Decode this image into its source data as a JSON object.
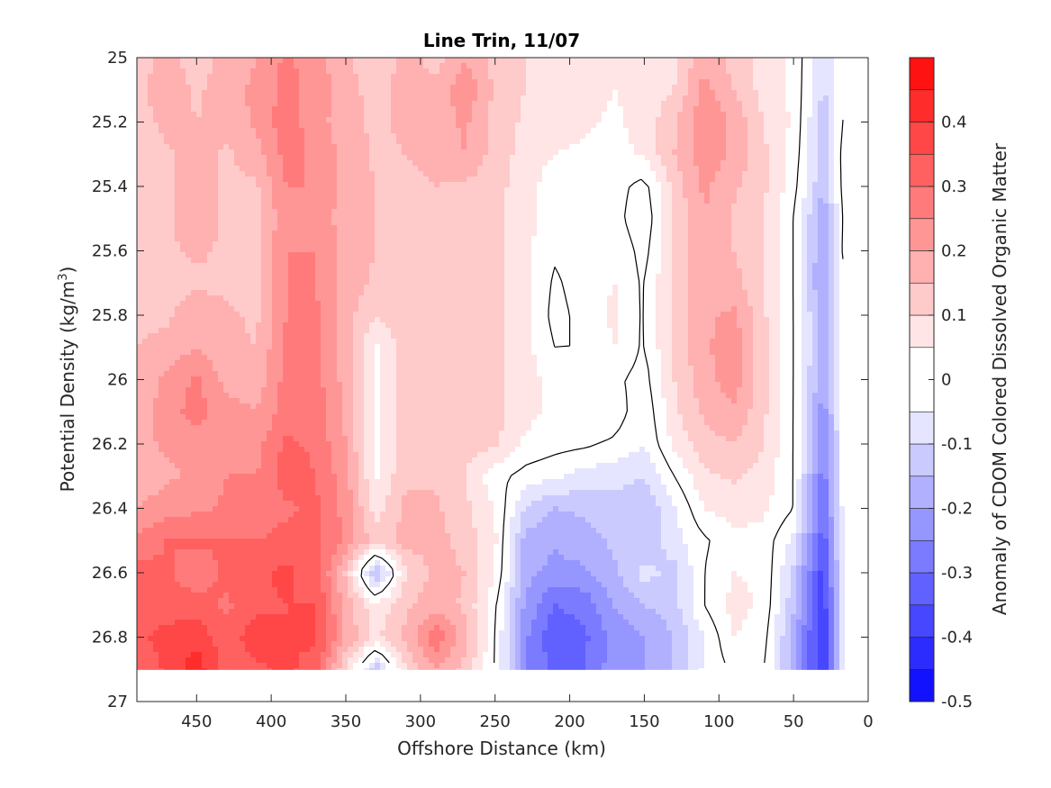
{
  "chart_data": {
    "type": "contour",
    "title": "Line Trin, 11/07",
    "xlabel": "Offshore Distance (km)",
    "ylabel": "Potential Density (kg/m",
    "ylabel_superscript": "3",
    "ylabel_suffix": ")",
    "xlim": [
      490,
      0
    ],
    "x_reversed": true,
    "ylim": [
      25,
      27
    ],
    "y_reversed": true,
    "x_ticks": [
      450,
      400,
      350,
      300,
      250,
      200,
      150,
      100,
      50,
      0
    ],
    "x_tick_labels": [
      "450",
      "400",
      "350",
      "300",
      "250",
      "200",
      "150",
      "100",
      "50",
      "0"
    ],
    "y_ticks": [
      25,
      25.2,
      25.4,
      25.6,
      25.8,
      26,
      26.2,
      26.4,
      26.6,
      26.8,
      27
    ],
    "y_tick_labels": [
      "25",
      "25.2",
      "25.4",
      "25.6",
      "25.8",
      "26",
      "26.2",
      "26.4",
      "26.6",
      "26.8",
      "27"
    ],
    "data_bottom_density": 26.9,
    "data_east_limit_km": 15,
    "colorbar": {
      "label": "Anomaly of CDOM Colored Dissolved Organic Matter",
      "range": [
        -0.5,
        0.5
      ],
      "ticks": [
        0.4,
        0.3,
        0.2,
        0.1,
        0,
        -0.1,
        -0.2,
        -0.3,
        -0.4,
        -0.5
      ],
      "tick_labels": [
        "0.4",
        "0.3",
        "0.2",
        "0.1",
        "0",
        "-0.1",
        "-0.2",
        "-0.3",
        "-0.4",
        "-0.5"
      ],
      "levels": [
        -0.5,
        -0.45,
        -0.4,
        -0.35,
        -0.3,
        -0.25,
        -0.2,
        -0.15,
        -0.1,
        -0.05,
        0.05,
        0.1,
        0.15,
        0.2,
        0.25,
        0.3,
        0.35,
        0.4,
        0.45,
        0.5
      ],
      "colormap": "blue-white-red"
    },
    "grid": false,
    "zero_contour_color": "#000000",
    "anomaly_grid": {
      "x_km": [
        490,
        470,
        450,
        430,
        410,
        390,
        370,
        350,
        330,
        310,
        290,
        270,
        250,
        230,
        210,
        190,
        170,
        150,
        130,
        110,
        90,
        70,
        50,
        30,
        15
      ],
      "density": [
        25.0,
        25.1,
        25.2,
        25.3,
        25.4,
        25.5,
        25.6,
        25.7,
        25.8,
        25.9,
        26.0,
        26.1,
        26.2,
        26.3,
        26.4,
        26.5,
        26.6,
        26.7,
        26.8,
        26.9
      ],
      "values": [
        [
          0.12,
          0.17,
          0.12,
          0.17,
          0.2,
          0.26,
          0.22,
          0.16,
          0.11,
          0.17,
          0.13,
          0.2,
          0.13,
          0.1,
          0.09,
          0.07,
          0.05,
          0.08,
          0.09,
          0.18,
          0.13,
          0.08,
          0.04,
          -0.1,
          0.0
        ],
        [
          0.13,
          0.19,
          0.14,
          0.18,
          0.21,
          0.27,
          0.23,
          0.17,
          0.13,
          0.17,
          0.16,
          0.24,
          0.14,
          0.1,
          0.08,
          0.07,
          0.05,
          0.07,
          0.1,
          0.22,
          0.15,
          0.08,
          0.04,
          -0.11,
          0.0
        ],
        [
          0.12,
          0.17,
          0.15,
          0.17,
          0.21,
          0.28,
          0.22,
          0.17,
          0.14,
          0.16,
          0.17,
          0.21,
          0.13,
          0.09,
          0.07,
          0.06,
          0.04,
          0.07,
          0.14,
          0.24,
          0.19,
          0.1,
          0.04,
          -0.13,
          0.02
        ],
        [
          0.11,
          0.14,
          0.17,
          0.14,
          0.18,
          0.27,
          0.24,
          0.18,
          0.14,
          0.15,
          0.17,
          0.2,
          0.13,
          0.08,
          0.05,
          0.04,
          0.03,
          0.06,
          0.15,
          0.23,
          0.19,
          0.11,
          0.03,
          -0.13,
          0.04
        ],
        [
          0.11,
          0.14,
          0.18,
          0.14,
          0.14,
          0.25,
          0.25,
          0.18,
          0.15,
          0.13,
          0.15,
          0.14,
          0.12,
          0.07,
          0.02,
          0.03,
          0.02,
          -0.02,
          0.12,
          0.21,
          0.16,
          0.11,
          0.02,
          -0.15,
          0.04
        ],
        [
          0.11,
          0.14,
          0.19,
          0.14,
          0.13,
          0.24,
          0.24,
          0.17,
          0.15,
          0.12,
          0.14,
          0.13,
          0.12,
          0.07,
          0.02,
          0.03,
          0.02,
          -0.04,
          0.11,
          0.2,
          0.14,
          0.1,
          0.0,
          -0.19,
          0.03
        ],
        [
          0.12,
          0.14,
          0.16,
          0.14,
          0.13,
          0.25,
          0.25,
          0.18,
          0.15,
          0.12,
          0.12,
          0.13,
          0.12,
          0.06,
          0.01,
          0.03,
          0.04,
          -0.02,
          0.12,
          0.19,
          0.15,
          0.1,
          0.0,
          -0.2,
          0.04
        ],
        [
          0.12,
          0.13,
          0.14,
          0.14,
          0.13,
          0.25,
          0.25,
          0.18,
          0.14,
          0.11,
          0.11,
          0.12,
          0.11,
          0.07,
          -0.01,
          0.03,
          0.05,
          -0.01,
          0.12,
          0.18,
          0.17,
          0.1,
          0.0,
          -0.22,
          0.0
        ],
        [
          0.13,
          0.14,
          0.18,
          0.16,
          0.14,
          0.25,
          0.26,
          0.17,
          0.1,
          0.13,
          0.12,
          0.13,
          0.12,
          0.07,
          -0.02,
          0.02,
          0.06,
          -0.01,
          0.12,
          0.19,
          0.21,
          0.11,
          0.0,
          -0.18,
          0.0
        ],
        [
          0.15,
          0.17,
          0.2,
          0.16,
          0.15,
          0.26,
          0.26,
          0.17,
          0.04,
          0.13,
          0.13,
          0.14,
          0.12,
          0.07,
          0.0,
          0.0,
          0.05,
          -0.01,
          0.12,
          0.19,
          0.23,
          0.12,
          0.0,
          -0.18,
          0.0
        ],
        [
          0.16,
          0.21,
          0.26,
          0.18,
          0.17,
          0.27,
          0.27,
          0.18,
          0.04,
          0.13,
          0.14,
          0.14,
          0.12,
          0.07,
          0.03,
          0.03,
          0.01,
          -0.02,
          0.1,
          0.18,
          0.23,
          0.12,
          0.0,
          -0.19,
          0.0
        ],
        [
          0.17,
          0.23,
          0.27,
          0.22,
          0.2,
          0.28,
          0.28,
          0.19,
          0.04,
          0.14,
          0.15,
          0.13,
          0.12,
          0.07,
          0.03,
          0.05,
          0.03,
          -0.04,
          0.09,
          0.16,
          0.19,
          0.11,
          0.0,
          -0.23,
          0.0
        ],
        [
          0.18,
          0.21,
          0.22,
          0.24,
          0.23,
          0.31,
          0.29,
          0.2,
          0.04,
          0.14,
          0.15,
          0.12,
          0.11,
          0.04,
          0.02,
          0.01,
          -0.01,
          -0.05,
          0.06,
          0.13,
          0.15,
          0.1,
          0.0,
          -0.26,
          0.0
        ],
        [
          0.16,
          0.19,
          0.21,
          0.25,
          0.25,
          0.33,
          0.3,
          0.22,
          0.04,
          0.14,
          0.14,
          0.1,
          0.02,
          -0.02,
          -0.04,
          -0.07,
          -0.08,
          -0.1,
          0.0,
          0.09,
          0.11,
          0.08,
          0.0,
          -0.28,
          0.0
        ],
        [
          0.2,
          0.23,
          0.24,
          0.26,
          0.26,
          0.29,
          0.31,
          0.23,
          0.08,
          0.16,
          0.16,
          0.11,
          0.05,
          -0.1,
          -0.15,
          -0.14,
          -0.12,
          -0.14,
          -0.06,
          0.05,
          0.07,
          0.06,
          0.0,
          -0.3,
          0.0
        ],
        [
          0.26,
          0.3,
          0.31,
          0.3,
          0.3,
          0.32,
          0.32,
          0.24,
          0.12,
          0.17,
          0.17,
          0.13,
          0.06,
          -0.17,
          -0.19,
          -0.17,
          -0.14,
          -0.15,
          -0.07,
          -0.01,
          0.04,
          0.03,
          -0.06,
          -0.34,
          0.0
        ],
        [
          0.32,
          0.31,
          0.26,
          0.32,
          0.34,
          0.36,
          0.33,
          0.14,
          -0.16,
          0.09,
          0.17,
          0.15,
          0.05,
          -0.18,
          -0.22,
          -0.21,
          -0.16,
          -0.08,
          -0.12,
          0.0,
          0.05,
          0.04,
          -0.11,
          -0.38,
          0.0
        ],
        [
          0.3,
          0.32,
          0.33,
          0.29,
          0.34,
          0.35,
          0.35,
          0.18,
          0.06,
          0.14,
          0.18,
          0.14,
          0.01,
          -0.21,
          -0.3,
          -0.28,
          -0.2,
          -0.15,
          -0.12,
          0.0,
          0.07,
          0.04,
          -0.14,
          -0.39,
          0.0
        ],
        [
          0.34,
          0.37,
          0.38,
          0.32,
          0.38,
          0.35,
          0.36,
          0.19,
          0.09,
          0.16,
          0.29,
          0.17,
          0.0,
          -0.24,
          -0.34,
          -0.31,
          -0.23,
          -0.2,
          -0.15,
          -0.05,
          0.05,
          0.02,
          -0.17,
          -0.42,
          0.0
        ],
        [
          0.3,
          0.36,
          0.43,
          0.33,
          0.34,
          0.36,
          0.33,
          0.1,
          -0.14,
          0.1,
          0.2,
          0.13,
          0.0,
          -0.24,
          -0.32,
          -0.3,
          -0.22,
          -0.2,
          -0.15,
          -0.04,
          0.01,
          0.0,
          -0.16,
          -0.42,
          0.0
        ]
      ]
    }
  }
}
